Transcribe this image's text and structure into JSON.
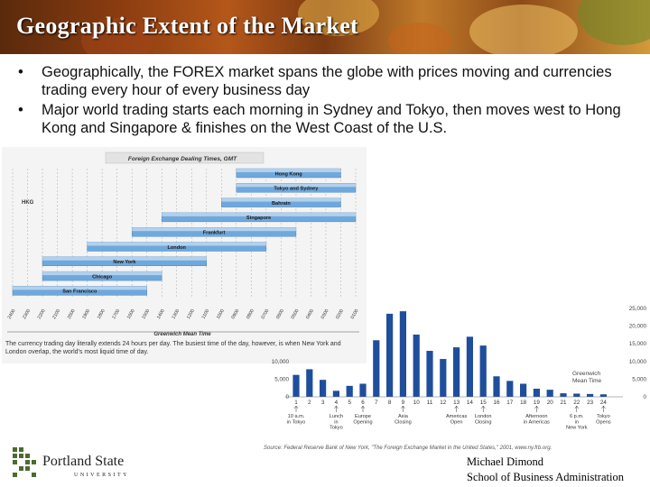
{
  "slide": {
    "title": "Geographic Extent of the Market",
    "bullet_marker": "•",
    "bullets": [
      "Geographically, the FOREX market spans the globe with prices moving and currencies trading every hour of every business day",
      "Major world trading starts each morning in Sydney and Tokyo, then moves west to Hong Kong and Singapore & finishes on the West Coast of the U.S."
    ]
  },
  "dealing_chart": {
    "title": "Foreign Exchange Dealing Times, GMT",
    "hkg_label": "HKG",
    "axis_label": "Greenwich Mean Time",
    "ticks": [
      "2400",
      "2300",
      "2200",
      "2100",
      "2000",
      "1900",
      "1800",
      "1700",
      "1600",
      "1500",
      "1400",
      "1300",
      "1200",
      "1100",
      "1000",
      "0900",
      "0800",
      "0700",
      "0600",
      "0500",
      "0400",
      "0300",
      "0200",
      "0100"
    ],
    "caption": "The currency trading day literally extends 24 hours per day. The busiest time of the day, however, is when New York and London overlap, the world's most liquid time of day.",
    "markets": [
      {
        "name": "Hong Kong",
        "start": 9,
        "end": 2
      },
      {
        "name": "Tokyo and Sydney",
        "start": 9,
        "end": 1
      },
      {
        "name": "Bahrain",
        "start": 10,
        "end": 2
      },
      {
        "name": "Singapore",
        "start": 14,
        "end": 1
      },
      {
        "name": "Frankfurt",
        "start": 16,
        "end": 5
      },
      {
        "name": "London",
        "start": 19,
        "end": 7
      },
      {
        "name": "New York",
        "start": 22,
        "end": 11
      },
      {
        "name": "Chicago",
        "start": 22,
        "end": 14
      },
      {
        "name": "San Francisco",
        "start": 24,
        "end": 15
      }
    ]
  },
  "chart_data": {
    "type": "bar",
    "categories": [
      "1",
      "2",
      "3",
      "4",
      "5",
      "6",
      "7",
      "8",
      "9",
      "10",
      "11",
      "12",
      "13",
      "14",
      "15",
      "16",
      "17",
      "18",
      "19",
      "20",
      "21",
      "22",
      "23",
      "24"
    ],
    "values": [
      6200,
      7800,
      4800,
      1700,
      3100,
      3700,
      16000,
      23500,
      24200,
      17600,
      13000,
      10700,
      14000,
      17000,
      14500,
      5800,
      4500,
      3700,
      2300,
      2000,
      1000,
      900,
      800,
      700
    ],
    "ylim": [
      0,
      25000
    ],
    "right_ticks": [
      "25,000",
      "20,000",
      "15,000",
      "10,000",
      "5,000",
      "0"
    ],
    "left_ticks": [
      "10,000",
      "5,000",
      "0"
    ],
    "annotation": "Greenwich Mean Time",
    "events": [
      {
        "at": 1,
        "label": [
          "10 a.m.",
          "in Tokyo"
        ]
      },
      {
        "at": 4,
        "label": [
          "Lunch",
          "in",
          "Tokyo"
        ]
      },
      {
        "at": 6,
        "label": [
          "Europe",
          "Opening"
        ]
      },
      {
        "at": 9,
        "label": [
          "Asia",
          "Closing"
        ]
      },
      {
        "at": 13,
        "label": [
          "Americas",
          "Open"
        ]
      },
      {
        "at": 15,
        "label": [
          "London",
          "Closing"
        ]
      },
      {
        "at": 19,
        "label": [
          "Afternoon",
          "in Americas"
        ]
      },
      {
        "at": 22,
        "label": [
          "6 p.m.",
          "in",
          "New York"
        ]
      },
      {
        "at": 24,
        "label": [
          "Tokyo",
          "Opens"
        ]
      }
    ],
    "source": "Source: Federal Reserve Bank of New York, \"The Foreign Exchange Market in the United States,\" 2001, www.ny.frb.org."
  },
  "logo": {
    "name": "Portland State",
    "sub": "UNIVERSITY"
  },
  "footer": {
    "author": "Michael Dimond",
    "school": "School of Business Administration"
  },
  "colors": {
    "bar": "#1f4e9c",
    "market_bar": "#6fa8dc",
    "market_bar_light": "#cfe2f3",
    "logo_green": "#4e6b2e"
  }
}
